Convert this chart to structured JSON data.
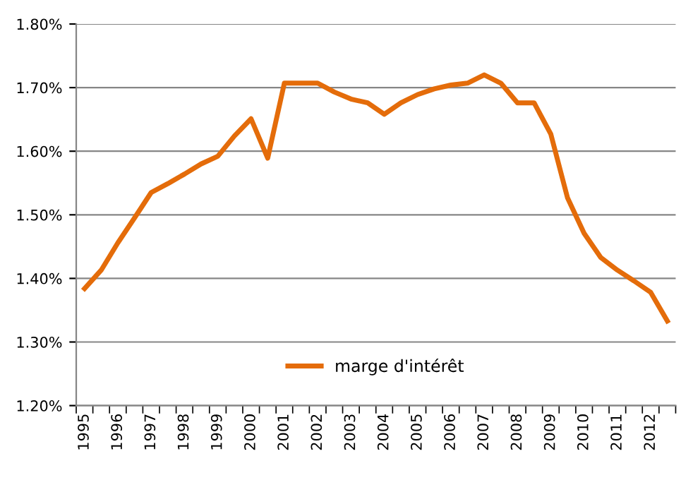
{
  "chart_data": {
    "type": "line",
    "categories": [
      "1995",
      null,
      "1996",
      null,
      "1997",
      null,
      "1998",
      null,
      "1999",
      null,
      "2000",
      null,
      "2001",
      null,
      "2002",
      null,
      "2003",
      null,
      "2004",
      null,
      "2005",
      null,
      "2006",
      null,
      "2007",
      null,
      "2008",
      null,
      "2009",
      null,
      "2010",
      null,
      "2011",
      null,
      "2012",
      null
    ],
    "series": [
      {
        "name": "marge d'intérêt",
        "color": "#e46c0a",
        "values": [
          1.384,
          1.413,
          1.456,
          1.495,
          1.535,
          1.549,
          1.564,
          1.58,
          1.592,
          1.624,
          1.651,
          1.589,
          1.707,
          1.707,
          1.707,
          1.693,
          1.682,
          1.676,
          1.658,
          1.676,
          1.689,
          1.698,
          1.704,
          1.707,
          1.72,
          1.707,
          1.676,
          1.676,
          1.627,
          1.527,
          1.471,
          1.433,
          1.413,
          1.396,
          1.378,
          1.333
        ]
      }
    ],
    "ylim": [
      1.2,
      1.8
    ],
    "yticks": [
      {
        "value": 1.2,
        "label": "1.20%"
      },
      {
        "value": 1.3,
        "label": "1.30%"
      },
      {
        "value": 1.4,
        "label": "1.40%"
      },
      {
        "value": 1.5,
        "label": "1.50%"
      },
      {
        "value": 1.6,
        "label": "1.60%"
      },
      {
        "value": 1.7,
        "label": "1.70%"
      },
      {
        "value": 1.8,
        "label": "1.80%"
      }
    ],
    "grid": "y",
    "legend": "bottom",
    "marker": "none",
    "line_style": "solid"
  }
}
